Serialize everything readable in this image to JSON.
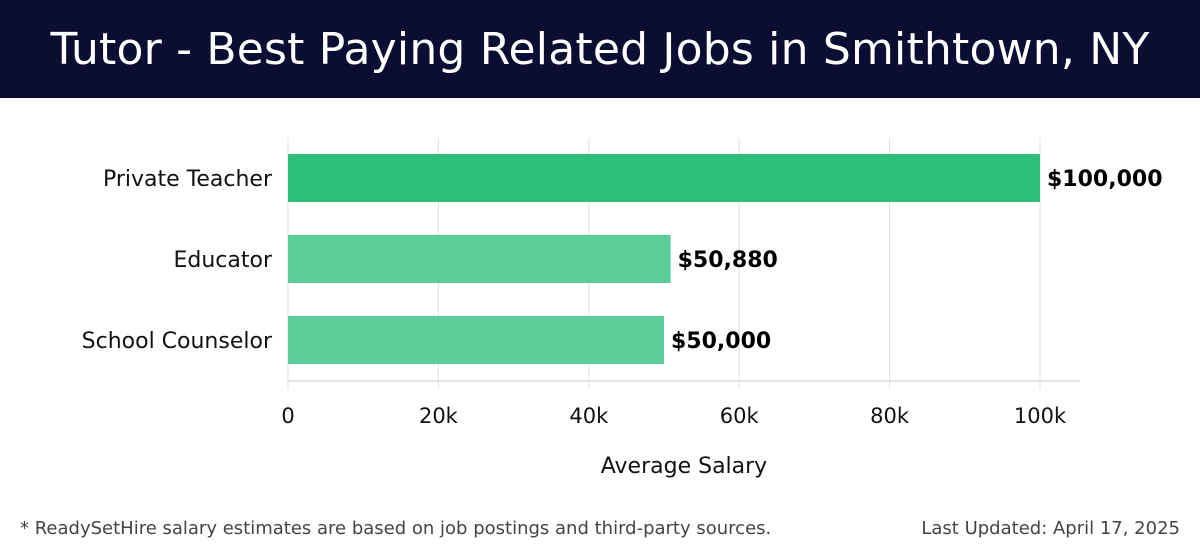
{
  "header": {
    "title": "Tutor - Best Paying Related Jobs in Smithtown, NY"
  },
  "chart_data": {
    "type": "bar",
    "orientation": "horizontal",
    "title": "Tutor - Best Paying Related Jobs in Smithtown, NY",
    "categories": [
      "Private Teacher",
      "Educator",
      "School Counselor"
    ],
    "values": [
      100000,
      50880,
      50000
    ],
    "value_labels": [
      "$100,000",
      "$50,880",
      "$50,000"
    ],
    "xlabel": "Average Salary",
    "ylabel": "",
    "xlim": [
      0,
      105000
    ],
    "ticks": [
      0,
      20000,
      40000,
      60000,
      80000,
      100000
    ],
    "tick_labels": [
      "0",
      "20k",
      "40k",
      "60k",
      "80k",
      "100k"
    ],
    "grid": true,
    "colors": {
      "highlight": "#2cbf78",
      "default": "#5acd98",
      "grid": "#e2e2e2",
      "axis": "#cccccc"
    }
  },
  "footer": {
    "note": "* ReadySetHire salary estimates are based on job postings and third-party sources.",
    "updated": "Last Updated: April 17, 2025"
  }
}
